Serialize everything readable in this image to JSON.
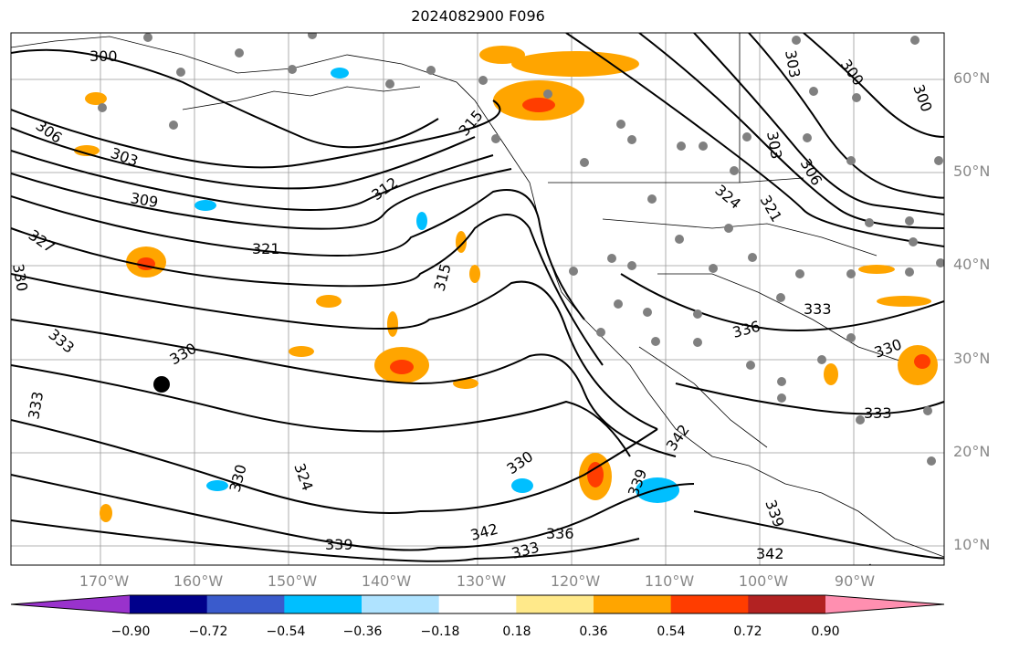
{
  "title": "2024082900 F096",
  "lat_labels": [
    "60°N",
    "50°N",
    "40°N",
    "30°N",
    "20°N",
    "10°N"
  ],
  "lon_labels": [
    "170°W",
    "160°W",
    "150°W",
    "140°W",
    "130°W",
    "120°W",
    "110°W",
    "100°W",
    "90°W"
  ],
  "contour_labels": [
    "300",
    "303",
    "306",
    "309",
    "312",
    "315",
    "321",
    "324",
    "327",
    "330",
    "333",
    "336",
    "339",
    "342"
  ],
  "colorbar": {
    "ticks": [
      "−0.90",
      "−0.72",
      "−0.54",
      "−0.36",
      "−0.18",
      "0.18",
      "0.36",
      "0.54",
      "0.72",
      "0.90"
    ],
    "colors": [
      "#9932cc",
      "#00008b",
      "#3a5bcc",
      "#00bfff",
      "#afe3ff",
      "#ffffff",
      "#ffe98a",
      "#ffa500",
      "#ff3d00",
      "#b22222",
      "#ff8fb0"
    ]
  }
}
